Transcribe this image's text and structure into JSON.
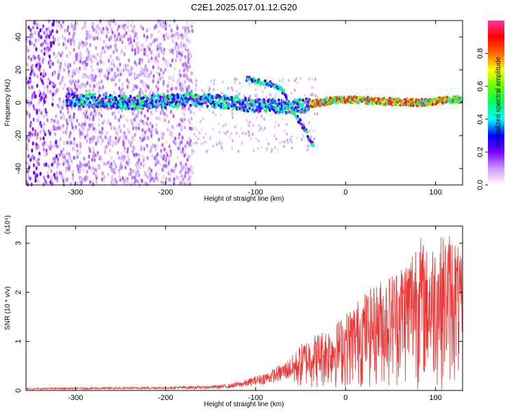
{
  "figure": {
    "title": "C2E1.2025.017.01.12.G20"
  },
  "chart_data": [
    {
      "type": "heatmap",
      "xlabel": "Height of straight line (km)",
      "ylabel": "Frequency (Hz)",
      "xlim": [
        -355,
        130
      ],
      "ylim": [
        -50,
        50
      ],
      "xticks": [
        -300,
        -200,
        -100,
        0,
        100
      ],
      "yticks": [
        -40,
        -20,
        0,
        20,
        40
      ],
      "colorbar": {
        "label": "Normalized spectral amplitude",
        "range": [
          0,
          1
        ],
        "ticks": [
          0.0,
          0.2,
          0.4,
          0.6,
          0.8
        ],
        "colormap": [
          "#ffffff",
          "#cc99ff",
          "#7a00ff",
          "#0000ff",
          "#00ffff",
          "#00ff66",
          "#66ff00",
          "#ffff00",
          "#ff6600",
          "#ff0000",
          "#ff3399"
        ]
      },
      "main_trace": {
        "color_peak": "#ff3333",
        "points": [
          [
            -305,
            2
          ],
          [
            -270,
            1
          ],
          [
            -240,
            0
          ],
          [
            -200,
            1
          ],
          [
            -175,
            2
          ],
          [
            -150,
            1
          ],
          [
            -120,
            0
          ],
          [
            -100,
            -2
          ],
          [
            -80,
            -2
          ],
          [
            -60,
            -3
          ],
          [
            -40,
            -1
          ],
          [
            -20,
            1
          ],
          [
            0,
            2
          ],
          [
            40,
            1
          ],
          [
            80,
            0
          ],
          [
            125,
            2
          ]
        ]
      },
      "feature_trace": {
        "points": [
          [
            -110,
            15
          ],
          [
            -95,
            13
          ],
          [
            -80,
            11
          ],
          [
            -70,
            7
          ],
          [
            -62,
            0
          ],
          [
            -55,
            -8
          ],
          [
            -45,
            -16
          ],
          [
            -35,
            -28
          ]
        ]
      }
    },
    {
      "type": "line",
      "xlabel": "Height of straight line (km)",
      "ylabel": "SNR (10 * v/v)",
      "scale_note": "(x10⁴)",
      "xlim": [
        -355,
        130
      ],
      "ylim": [
        0,
        3.35
      ],
      "xticks": [
        -300,
        -200,
        -100,
        0,
        100
      ],
      "yticks": [
        0,
        1,
        2,
        3
      ],
      "series": [
        {
          "color": "#ee3333",
          "envelope": {
            "x": [
              -355,
              -300,
              -250,
              -200,
              -150,
              -130,
              -110,
              -100,
              -85,
              -70,
              -60,
              -50,
              -40,
              -30,
              -20,
              -10,
              0,
              10,
              20,
              30,
              40,
              50,
              60,
              70,
              80,
              90,
              100,
              110,
              120,
              130
            ],
            "y": [
              0.05,
              0.06,
              0.07,
              0.08,
              0.1,
              0.13,
              0.22,
              0.3,
              0.4,
              0.55,
              0.7,
              0.95,
              1.1,
              1.2,
              1.3,
              1.4,
              1.6,
              1.8,
              2.0,
              2.1,
              2.3,
              2.4,
              2.6,
              2.8,
              3.3,
              2.9,
              3.1,
              3.2,
              3.3,
              2.6
            ]
          }
        }
      ]
    }
  ]
}
